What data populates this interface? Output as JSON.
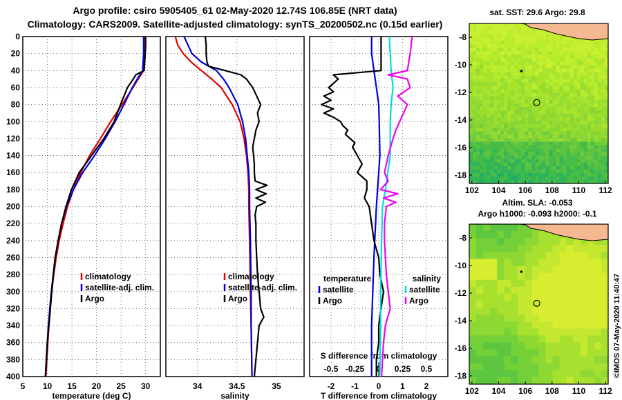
{
  "header": {
    "title_line1": "Argo profile: csiro 5905405_61 02-May-2020 12.74S 106.85E (NRT data)",
    "title_line2": "Climatology: CARS2009. Satellite-adjusted climatology: synTS_20200502.nc (0.15d earlier)"
  },
  "colors": {
    "climatology": "#e00000",
    "satellite": "#0000dd",
    "argo": "#000000",
    "salinity_diff": "#ee00ee",
    "satellite_sal": "#00dddd",
    "land": "#f5b890"
  },
  "chart_data": [
    {
      "type": "line",
      "name": "temperature",
      "xlabel": "temperature (deg C)",
      "ylabel": "",
      "xlim": [
        5,
        33
      ],
      "ylim": [
        400,
        0
      ],
      "xticks": [
        "5",
        "10",
        "15",
        "20",
        "25",
        "30"
      ],
      "xtick_values": [
        5,
        10,
        15,
        20,
        25,
        30
      ],
      "yticks": [
        "0",
        "20",
        "40",
        "60",
        "80",
        "100",
        "120",
        "140",
        "160",
        "180",
        "200",
        "220",
        "240",
        "260",
        "280",
        "300",
        "320",
        "340",
        "360",
        "380",
        "400"
      ],
      "ytick_values": [
        0,
        20,
        40,
        60,
        80,
        100,
        120,
        140,
        160,
        180,
        200,
        220,
        240,
        260,
        280,
        300,
        320,
        340,
        360,
        380,
        400
      ],
      "legend": [
        "climatology",
        "satellite-adj. clim.",
        "Argo"
      ],
      "legend_position": "right-middle",
      "series": [
        {
          "name": "climatology",
          "color": "#e00000",
          "depth": [
            0,
            10,
            20,
            30,
            40,
            50,
            60,
            80,
            100,
            120,
            140,
            160,
            180,
            200,
            220,
            240,
            260,
            280,
            300,
            320,
            340,
            360,
            380,
            400
          ],
          "values": [
            29.9,
            29.9,
            29.9,
            29.8,
            29.6,
            28.5,
            27.4,
            25.2,
            22.9,
            20.8,
            18.6,
            16.8,
            15.3,
            14.1,
            13.2,
            12.4,
            11.8,
            11.3,
            10.9,
            10.6,
            10.3,
            10.1,
            9.9,
            9.7
          ]
        },
        {
          "name": "satellite-adj. clim.",
          "color": "#0000dd",
          "depth": [
            0,
            10,
            20,
            30,
            40,
            50,
            60,
            80,
            100,
            120,
            140,
            160,
            180,
            200,
            220,
            240,
            260,
            280,
            300,
            320,
            340,
            360,
            380,
            400
          ],
          "values": [
            29.6,
            29.6,
            29.6,
            29.5,
            29.4,
            28.3,
            27.3,
            25.6,
            23.8,
            21.8,
            19.6,
            17.2,
            15.3,
            13.9,
            12.9,
            12.2,
            11.6,
            11.2,
            10.8,
            10.5,
            10.2,
            10.0,
            9.8,
            9.6
          ]
        },
        {
          "name": "Argo",
          "color": "#000000",
          "depth": [
            0,
            10,
            20,
            30,
            40,
            45,
            50,
            60,
            80,
            100,
            120,
            140,
            160,
            180,
            200,
            220,
            240,
            260,
            280,
            300,
            320,
            340,
            360,
            380,
            400
          ],
          "values": [
            30.0,
            30.0,
            29.9,
            29.8,
            29.7,
            28.0,
            27.5,
            26.3,
            24.9,
            23.6,
            21.5,
            19.0,
            16.5,
            14.9,
            13.8,
            12.9,
            12.2,
            11.6,
            11.2,
            10.9,
            10.6,
            10.3,
            10.0,
            9.8,
            9.6
          ]
        }
      ]
    },
    {
      "type": "line",
      "name": "salinity",
      "xlabel": "salinity",
      "xlim": [
        33.6,
        35.35
      ],
      "ylim": [
        400,
        0
      ],
      "xticks": [
        "34",
        "34.5",
        "35"
      ],
      "xtick_values": [
        34,
        34.5,
        35
      ],
      "legend": [
        "climatology",
        "satellite-adj. clim.",
        "Argo"
      ],
      "legend_position": "right-middle",
      "series": [
        {
          "name": "climatology",
          "color": "#e00000",
          "depth": [
            0,
            10,
            20,
            30,
            40,
            50,
            60,
            80,
            100,
            120,
            140,
            160,
            180,
            200,
            240,
            300,
            340,
            400
          ],
          "values": [
            33.72,
            33.75,
            33.82,
            33.92,
            34.05,
            34.18,
            34.3,
            34.44,
            34.54,
            34.59,
            34.62,
            34.64,
            34.65,
            34.65,
            34.66,
            34.67,
            34.68,
            34.69
          ]
        },
        {
          "name": "satellite-adj. clim.",
          "color": "#0000dd",
          "depth": [
            0,
            10,
            20,
            30,
            40,
            50,
            60,
            80,
            100,
            120,
            140,
            160,
            180,
            200,
            240,
            300,
            340,
            400
          ],
          "values": [
            33.83,
            33.88,
            33.93,
            34.05,
            34.24,
            34.33,
            34.4,
            34.51,
            34.57,
            34.61,
            34.63,
            34.65,
            34.66,
            34.66,
            34.67,
            34.68,
            34.68,
            34.69
          ]
        },
        {
          "name": "Argo",
          "color": "#000000",
          "depth": [
            0,
            10,
            20,
            30,
            35,
            40,
            45,
            50,
            60,
            70,
            80,
            90,
            100,
            110,
            120,
            130,
            140,
            150,
            160,
            170,
            175,
            180,
            185,
            190,
            195,
            200,
            210,
            220,
            240,
            260,
            280,
            300,
            320,
            330,
            340,
            360,
            380,
            400
          ],
          "values": [
            34.1,
            34.11,
            34.11,
            34.12,
            34.14,
            34.35,
            34.55,
            34.62,
            34.7,
            34.75,
            34.8,
            34.76,
            34.78,
            34.74,
            34.72,
            34.7,
            34.71,
            34.72,
            34.72,
            34.73,
            34.88,
            34.74,
            34.87,
            34.74,
            34.86,
            34.75,
            34.73,
            34.74,
            34.74,
            34.75,
            34.76,
            34.78,
            34.8,
            34.84,
            34.78,
            34.76,
            34.74,
            34.72
          ]
        }
      ]
    },
    {
      "type": "line",
      "name": "difference",
      "xlabel": "T difference from climatology",
      "x2label": "S difference from climatology",
      "xlim": [
        -2.9,
        2.9
      ],
      "ylim": [
        400,
        0
      ],
      "xticks": [
        "-2",
        "-1",
        "0",
        "1",
        "2"
      ],
      "xtick_values": [
        -2,
        -1,
        0,
        1,
        2
      ],
      "x2ticks": [
        "-0.5",
        "-0.25",
        "0",
        "0.25",
        "0.5"
      ],
      "x2tick_values": [
        -0.5,
        -0.25,
        0,
        0.25,
        0.5
      ],
      "legend_temperature": {
        "title": "temperature",
        "items": [
          "satellite",
          "Argo"
        ]
      },
      "legend_salinity": {
        "title": "salinity",
        "items": [
          "satellite",
          "Argo"
        ]
      },
      "series": [
        {
          "name": "T satellite",
          "color": "#0000dd",
          "axis": "T",
          "depth": [
            0,
            20,
            40,
            60,
            80,
            100,
            140,
            200,
            260,
            300,
            340,
            400
          ],
          "values": [
            -0.3,
            -0.3,
            -0.2,
            -0.1,
            0.0,
            0.02,
            0.05,
            -0.1,
            -0.2,
            -0.25,
            -0.3,
            -0.3
          ]
        },
        {
          "name": "T Argo",
          "color": "#000000",
          "axis": "T",
          "depth": [
            0,
            20,
            40,
            45,
            50,
            55,
            60,
            65,
            70,
            75,
            80,
            85,
            90,
            95,
            100,
            105,
            110,
            115,
            120,
            125,
            130,
            140,
            150,
            160,
            170,
            180,
            190,
            200,
            220,
            240,
            260,
            280,
            300,
            320,
            340,
            360,
            380,
            400
          ],
          "values": [
            0.1,
            0.1,
            0.1,
            -1.9,
            -1.7,
            -1.9,
            -2.1,
            -1.9,
            -2.3,
            -2.0,
            -2.4,
            -1.9,
            -2.3,
            -1.9,
            -1.6,
            -1.5,
            -1.3,
            -1.4,
            -1.2,
            -1.0,
            -1.1,
            -0.9,
            -0.7,
            -0.9,
            -0.5,
            -0.5,
            -0.6,
            -0.4,
            -0.3,
            -0.2,
            0.0,
            0.05,
            0.2,
            0.1,
            0.0,
            0.0,
            -0.1,
            -0.1
          ]
        },
        {
          "name": "S satellite",
          "color": "#00dddd",
          "axis": "S",
          "depth": [
            0,
            20,
            40,
            60,
            80,
            100,
            140,
            180,
            200,
            240,
            300,
            340,
            400
          ],
          "values": [
            0.11,
            0.12,
            0.13,
            0.15,
            0.13,
            0.12,
            0.12,
            0.07,
            0.04,
            0.03,
            0.02,
            0.02,
            0.01
          ]
        },
        {
          "name": "S Argo",
          "color": "#ee00ee",
          "axis": "S",
          "depth": [
            0,
            20,
            40,
            45,
            50,
            60,
            70,
            80,
            90,
            100,
            110,
            120,
            140,
            160,
            170,
            180,
            185,
            190,
            195,
            200,
            220,
            240,
            260,
            280,
            300,
            320,
            340,
            360,
            380,
            400
          ],
          "values": [
            0.35,
            0.33,
            0.3,
            0.1,
            0.3,
            0.33,
            0.2,
            0.3,
            0.26,
            0.22,
            0.18,
            0.15,
            0.1,
            0.06,
            0.1,
            0.02,
            0.2,
            0.05,
            0.18,
            0.08,
            0.06,
            0.06,
            0.07,
            0.08,
            0.1,
            0.12,
            0.07,
            0.05,
            0.04,
            0.03
          ]
        }
      ]
    },
    {
      "type": "heatmap",
      "name": "sst_map",
      "title": "sat. SST: 29.6 Argo: 29.8",
      "xticks": [
        "102",
        "104",
        "106",
        "108",
        "110",
        "112"
      ],
      "yticks": [
        "-8",
        "-10",
        "-12",
        "-14",
        "-16",
        "-18"
      ],
      "xlim": [
        101.8,
        112.2
      ],
      "ylim": [
        -18.6,
        -7.0
      ],
      "argo_position": {
        "lon": 106.85,
        "lat": -12.74
      }
    },
    {
      "type": "heatmap",
      "name": "sla_map",
      "title_line1": "Altim. SLA: -0.053",
      "title_line2": "Argo h1000: -0.093 h2000: -0.1",
      "xticks": [
        "102",
        "104",
        "106",
        "108",
        "110",
        "112"
      ],
      "yticks": [
        "-8",
        "-10",
        "-12",
        "-14",
        "-16",
        "-18"
      ],
      "xlim": [
        101.8,
        112.2
      ],
      "ylim": [
        -18.6,
        -7.0
      ],
      "argo_position": {
        "lon": 106.85,
        "lat": -12.74
      }
    }
  ],
  "footer": {
    "stamp": "©IMOS 07-May-2020 11:40:47"
  }
}
